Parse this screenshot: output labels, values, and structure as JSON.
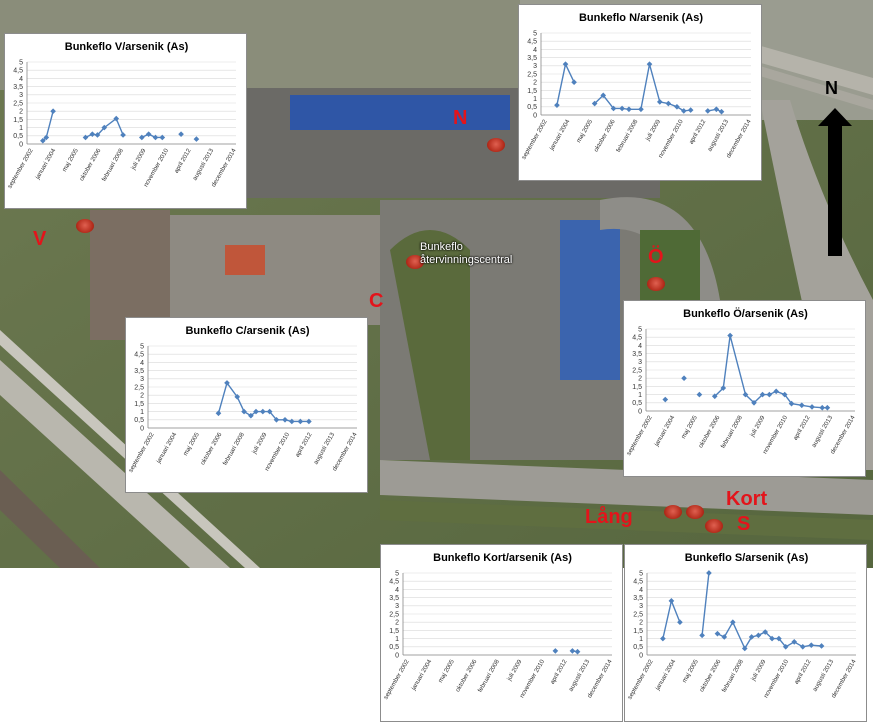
{
  "map": {
    "labels": {
      "v": "V",
      "n": "N",
      "c": "C",
      "o": "Ö",
      "lang": "Lång",
      "kort": "Kort",
      "s": "S",
      "north": "N"
    },
    "place": {
      "line1": "Bunkeflo",
      "line2": "återvinningscentral"
    }
  },
  "colors": {
    "series": "#4f81bd",
    "label": "#e3141b"
  },
  "x_ticks": [
    "september 2002",
    "januari 2004",
    "maj 2005",
    "oktober 2006",
    "februari 2008",
    "juli 2009",
    "november 2010",
    "april 2012",
    "augusti 2013",
    "december 2014"
  ],
  "y_ticks": [
    "0",
    "0,5",
    "1",
    "1,5",
    "2",
    "2,5",
    "3",
    "3,5",
    "4",
    "4,5",
    "5"
  ],
  "chart_data": [
    {
      "id": "V",
      "type": "line",
      "title": "Bunkeflo V/arsenik (As)",
      "ylim": [
        0,
        5
      ],
      "points": [
        [
          2003.6,
          0.2
        ],
        [
          2003.8,
          0.4
        ],
        [
          2004.2,
          2.0
        ],
        null,
        [
          2006.1,
          0.4
        ],
        [
          2006.5,
          0.6
        ],
        [
          2006.8,
          0.55
        ],
        [
          2007.2,
          1.0
        ],
        [
          2007.9,
          1.55
        ],
        [
          2008.3,
          0.55
        ],
        null,
        [
          2009.4,
          0.4
        ],
        [
          2009.8,
          0.6
        ],
        [
          2010.2,
          0.4
        ],
        [
          2010.6,
          0.4
        ],
        null,
        [
          2011.7,
          0.6
        ],
        null,
        [
          2012.6,
          0.3
        ]
      ]
    },
    {
      "id": "N",
      "type": "line",
      "title": "Bunkeflo N/arsenik (As)",
      "ylim": [
        0,
        5
      ],
      "points": [
        [
          2003.6,
          0.6
        ],
        [
          2004.1,
          3.1
        ],
        [
          2004.6,
          2.0
        ],
        null,
        [
          2005.8,
          0.7
        ],
        [
          2006.3,
          1.2
        ],
        [
          2006.9,
          0.4
        ],
        [
          2007.4,
          0.4
        ],
        [
          2007.8,
          0.35
        ],
        [
          2008.5,
          0.35
        ],
        [
          2009.0,
          3.1
        ],
        [
          2009.6,
          0.8
        ],
        [
          2010.1,
          0.7
        ],
        [
          2010.6,
          0.5
        ],
        [
          2011.0,
          0.25
        ],
        [
          2011.4,
          0.3
        ],
        null,
        [
          2012.4,
          0.25
        ],
        [
          2012.9,
          0.35
        ],
        [
          2013.2,
          0.2
        ]
      ]
    },
    {
      "id": "C",
      "type": "line",
      "title": "Bunkeflo C/arsenik (As)",
      "ylim": [
        0,
        5
      ],
      "points": [
        [
          2006.8,
          0.9
        ],
        [
          2007.3,
          2.75
        ],
        [
          2007.9,
          1.9
        ],
        [
          2008.3,
          1.0
        ],
        [
          2008.7,
          0.75
        ],
        [
          2009.0,
          1.0
        ],
        [
          2009.4,
          1.0
        ],
        [
          2009.8,
          1.0
        ],
        [
          2010.2,
          0.5
        ],
        [
          2010.7,
          0.5
        ],
        [
          2011.1,
          0.4
        ],
        [
          2011.6,
          0.4
        ],
        [
          2012.1,
          0.4
        ]
      ]
    },
    {
      "id": "Ö",
      "type": "line",
      "title": "Bunkeflo Ö/arsenik (As)",
      "ylim": [
        0,
        5
      ],
      "points": [
        [
          2003.8,
          0.7
        ],
        null,
        [
          2004.9,
          2.0
        ],
        null,
        [
          2005.8,
          1.0
        ],
        null,
        [
          2006.7,
          0.9
        ],
        [
          2007.2,
          1.4
        ],
        [
          2007.6,
          4.6
        ],
        [
          2008.5,
          1.0
        ],
        [
          2009.0,
          0.5
        ],
        [
          2009.5,
          1.0
        ],
        [
          2009.9,
          1.0
        ],
        [
          2010.3,
          1.2
        ],
        [
          2010.8,
          1.0
        ],
        [
          2011.2,
          0.45
        ],
        [
          2011.8,
          0.35
        ],
        [
          2012.4,
          0.25
        ],
        [
          2013.0,
          0.2
        ],
        [
          2013.3,
          0.2
        ]
      ]
    },
    {
      "id": "Kort",
      "type": "line",
      "title": "Bunkeflo Kort/arsenik (As)",
      "ylim": [
        0,
        5
      ],
      "points": [
        [
          2011.6,
          0.25
        ],
        null,
        [
          2012.6,
          0.25
        ],
        [
          2012.9,
          0.2
        ]
      ]
    },
    {
      "id": "S",
      "type": "line",
      "title": "Bunkeflo S/arsenik (As)",
      "ylim": [
        0,
        5
      ],
      "points": [
        [
          2003.6,
          1.0
        ],
        [
          2004.1,
          3.3
        ],
        [
          2004.6,
          2.0
        ],
        null,
        [
          2005.9,
          1.2
        ],
        [
          2006.3,
          5.0
        ],
        null,
        [
          2006.8,
          1.3
        ],
        [
          2007.2,
          1.1
        ],
        [
          2007.7,
          2.0
        ],
        [
          2008.4,
          0.4
        ],
        [
          2008.8,
          1.1
        ],
        [
          2009.2,
          1.2
        ],
        [
          2009.6,
          1.4
        ],
        [
          2010.0,
          1.0
        ],
        [
          2010.4,
          1.0
        ],
        [
          2010.8,
          0.5
        ],
        [
          2011.3,
          0.8
        ],
        [
          2011.8,
          0.5
        ],
        [
          2012.3,
          0.6
        ],
        [
          2012.9,
          0.55
        ]
      ]
    }
  ]
}
